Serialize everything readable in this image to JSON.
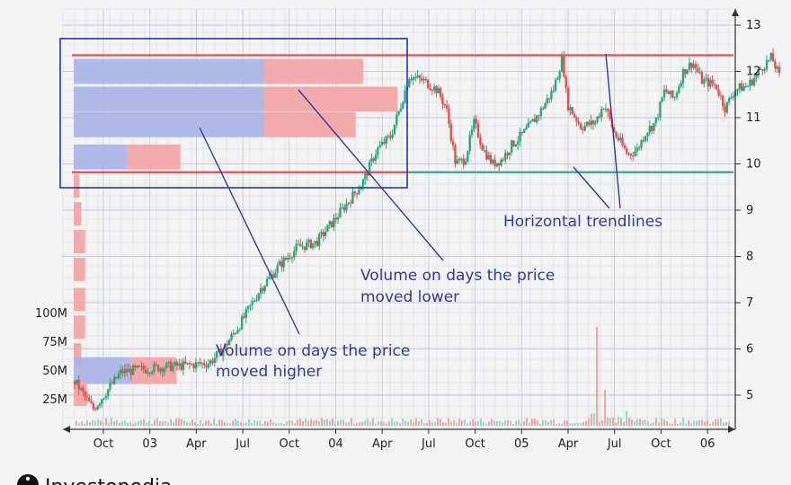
{
  "chart_data": {
    "type": "candlestick",
    "title": "",
    "xlabel": "",
    "ylabel": "",
    "ylim": [
      4.3,
      13.2
    ],
    "x_ticks": [
      "Oct",
      "03",
      "Apr",
      "Jul",
      "Oct",
      "04",
      "Apr",
      "Jul",
      "Oct",
      "05",
      "Apr",
      "Jul",
      "Oct",
      "06"
    ],
    "y_ticks": [
      5,
      6,
      7,
      8,
      9,
      10,
      11,
      12,
      13
    ],
    "volume_labels": [
      "100M",
      "75M",
      "50M",
      "25M"
    ],
    "price_path": [
      [
        0,
        5.3
      ],
      [
        0.4,
        4.7
      ],
      [
        1,
        5.5
      ],
      [
        1.8,
        5.6
      ],
      [
        2.5,
        5.65
      ],
      [
        2.9,
        5.7
      ],
      [
        3.2,
        6.0
      ],
      [
        3.6,
        6.6
      ],
      [
        4.0,
        7.3
      ],
      [
        4.4,
        7.8
      ],
      [
        4.8,
        8.2
      ],
      [
        5.2,
        8.3
      ],
      [
        5.6,
        8.8
      ],
      [
        5.9,
        9.2
      ],
      [
        6.2,
        9.6
      ],
      [
        6.5,
        10.3
      ],
      [
        6.8,
        10.6
      ],
      [
        7.0,
        11.2
      ],
      [
        7.2,
        11.9
      ],
      [
        7.5,
        11.8
      ],
      [
        7.8,
        11.6
      ],
      [
        8.0,
        11.2
      ],
      [
        8.2,
        10.0
      ],
      [
        8.4,
        10.1
      ],
      [
        8.6,
        10.9
      ],
      [
        8.8,
        10.3
      ],
      [
        9.0,
        10.0
      ],
      [
        9.2,
        10.1
      ],
      [
        9.4,
        10.4
      ],
      [
        9.7,
        10.7
      ],
      [
        10.0,
        11.1
      ],
      [
        10.3,
        11.6
      ],
      [
        10.5,
        12.3
      ],
      [
        10.6,
        11.3
      ],
      [
        10.9,
        10.8
      ],
      [
        11.2,
        10.9
      ],
      [
        11.4,
        11.3
      ],
      [
        11.6,
        10.7
      ],
      [
        11.9,
        10.2
      ],
      [
        12.1,
        10.3
      ],
      [
        12.3,
        10.7
      ],
      [
        12.5,
        10.9
      ],
      [
        12.7,
        11.6
      ],
      [
        12.9,
        11.4
      ],
      [
        13.1,
        12.0
      ],
      [
        13.3,
        12.2
      ],
      [
        13.5,
        11.8
      ],
      [
        13.8,
        11.7
      ],
      [
        14.0,
        11.2
      ],
      [
        14.2,
        11.6
      ],
      [
        14.5,
        11.7
      ],
      [
        14.8,
        12.1
      ],
      [
        15.0,
        12.3
      ],
      [
        15.2,
        11.8
      ]
    ],
    "volume_profile": [
      {
        "price": 12.0,
        "up": 100,
        "down": 52
      },
      {
        "price": 11.4,
        "up": 100,
        "down": 70
      },
      {
        "price": 10.85,
        "up": 100,
        "down": 48
      },
      {
        "price": 10.15,
        "up": 28,
        "down": 28
      },
      {
        "price": 9.5,
        "up": 0,
        "down": 3
      },
      {
        "price": 8.9,
        "up": 0,
        "down": 4
      },
      {
        "price": 8.3,
        "up": 0,
        "down": 6
      },
      {
        "price": 7.7,
        "up": 0,
        "down": 6
      },
      {
        "price": 7.05,
        "up": 0,
        "down": 6
      },
      {
        "price": 6.45,
        "up": 0,
        "down": 6
      },
      {
        "price": 5.85,
        "up": 0,
        "down": 4
      },
      {
        "price": 5.55,
        "up": 30,
        "down": 24
      },
      {
        "price": 5.0,
        "up": 0,
        "down": 7
      }
    ],
    "trendlines": [
      {
        "name": "resistance",
        "price": 12.35,
        "color": "#e05252"
      },
      {
        "name": "upper-band-bottom",
        "price": 9.82,
        "color": "#e05252"
      },
      {
        "name": "support",
        "price": 9.82,
        "color": "#3aa58a"
      }
    ],
    "annotations": [
      {
        "id": "higher",
        "lines": [
          "Volume on days the price",
          "moved higher"
        ]
      },
      {
        "id": "lower",
        "lines": [
          "Volume on days the price",
          "moved lower"
        ]
      },
      {
        "id": "trend",
        "lines": [
          "Horizontal trendlines"
        ]
      }
    ],
    "colors": {
      "up_candle": "#2aa87a",
      "down_candle": "#e05252",
      "up_volume": "#a9b4e8",
      "down_volume": "#f2a5a8",
      "annotation": "#2f3a9e",
      "grid": "#dcdce2"
    }
  },
  "brand": {
    "name": "Investopedia"
  }
}
